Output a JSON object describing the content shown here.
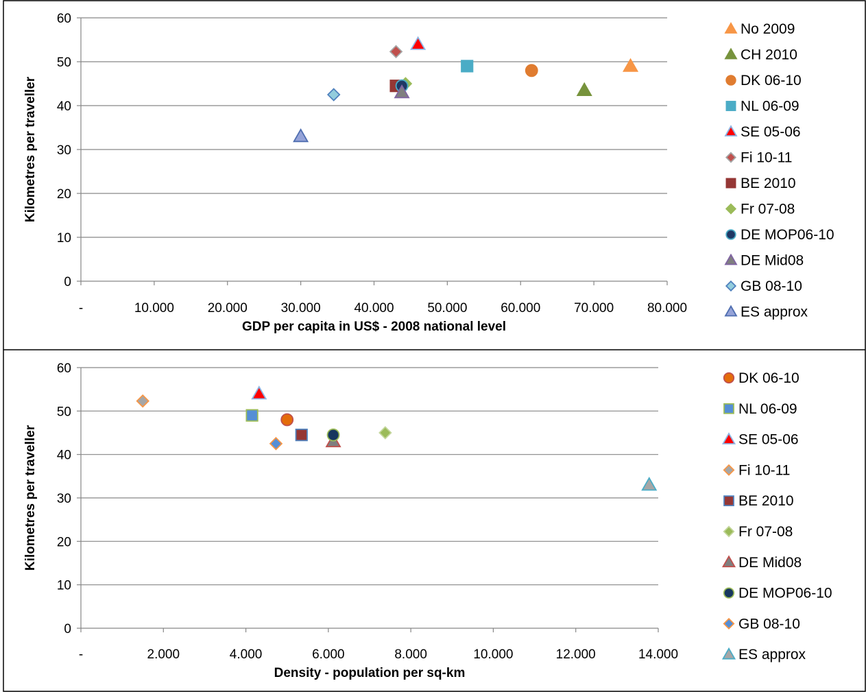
{
  "chart_data": [
    {
      "type": "scatter",
      "xlabel": "GDP per capita in US$ - 2008 national level",
      "ylabel": "Kilometres per traveller",
      "xlim": [
        0,
        80000
      ],
      "ylim": [
        0,
        60
      ],
      "x_tick_labels": [
        "-",
        "10.000",
        "20.000",
        "30.000",
        "40.000",
        "50.000",
        "60.000",
        "70.000",
        "80.000"
      ],
      "y_tick_labels": [
        "0",
        "10",
        "20",
        "30",
        "40",
        "50",
        "60"
      ],
      "grid": "horizontal",
      "legend_position": "right",
      "series": [
        {
          "name": "No 2009",
          "marker": "triangle",
          "fill": "#F79646",
          "stroke": "#F79646",
          "x": 75000,
          "y": 49
        },
        {
          "name": "CH 2010",
          "marker": "triangle",
          "fill": "#77933C",
          "stroke": "#77933C",
          "x": 68700,
          "y": 43.5
        },
        {
          "name": "DK 06-10",
          "marker": "circle",
          "fill": "#E07C30",
          "stroke": "#E07C30",
          "x": 61500,
          "y": 48
        },
        {
          "name": "NL 06-09",
          "marker": "square",
          "fill": "#4BACC6",
          "stroke": "#4BACC6",
          "x": 52700,
          "y": 49
        },
        {
          "name": "SE 05-06",
          "marker": "triangle",
          "fill": "#FF0000",
          "stroke": "#8EB4E3",
          "x": 46000,
          "y": 54
        },
        {
          "name": "Fi 10-11",
          "marker": "diamond",
          "fill": "#C0504D",
          "stroke": "#A6A6A6",
          "x": 43000,
          "y": 52.3
        },
        {
          "name": "BE 2010",
          "marker": "square",
          "fill": "#953735",
          "stroke": "#953735",
          "x": 43000,
          "y": 44.5
        },
        {
          "name": "Fr 07-08",
          "marker": "diamond",
          "fill": "#9BBB59",
          "stroke": "#9BBB59",
          "x": 44300,
          "y": 45
        },
        {
          "name": "DE MOP06-10",
          "marker": "circle",
          "fill": "#1F3864",
          "stroke": "#4BACC6",
          "x": 43800,
          "y": 44.5
        },
        {
          "name": "DE Mid08",
          "marker": "triangle",
          "fill": "#7F7F7F",
          "stroke": "#8064A2",
          "x": 43800,
          "y": 43
        },
        {
          "name": "GB 08-10",
          "marker": "diamond",
          "fill": "#93CDDD",
          "stroke": "#4F81BD",
          "x": 34500,
          "y": 42.5
        },
        {
          "name": "ES approx",
          "marker": "triangle",
          "fill": "#95A3D8",
          "stroke": "#4F6EB0",
          "x": 30000,
          "y": 33
        }
      ]
    },
    {
      "type": "scatter",
      "xlabel": "Density - population per sq-km",
      "ylabel": "Kilometres per traveller",
      "xlim": [
        0,
        14000
      ],
      "ylim": [
        0,
        60
      ],
      "x_tick_labels": [
        "-",
        "2.000",
        "4.000",
        "6.000",
        "8.000",
        "10.000",
        "12.000",
        "14.000"
      ],
      "y_tick_labels": [
        "0",
        "10",
        "20",
        "30",
        "40",
        "50",
        "60"
      ],
      "grid": "horizontal",
      "legend_position": "right",
      "series": [
        {
          "name": "DK 06-10",
          "marker": "circle",
          "fill": "#E46C0A",
          "stroke": "#C0504D",
          "x": 5000,
          "y": 48
        },
        {
          "name": "NL 06-09",
          "marker": "square",
          "fill": "#558ED5",
          "stroke": "#9BBB59",
          "x": 4150,
          "y": 49
        },
        {
          "name": "SE 05-06",
          "marker": "triangle",
          "fill": "#FF0000",
          "stroke": "#8EB4E3",
          "x": 4320,
          "y": 54
        },
        {
          "name": "Fi 10-11",
          "marker": "diamond",
          "fill": "#A6A6A6",
          "stroke": "#F79646",
          "x": 1500,
          "y": 52.3
        },
        {
          "name": "BE 2010",
          "marker": "square",
          "fill": "#953735",
          "stroke": "#4F81BD",
          "x": 5350,
          "y": 44.5
        },
        {
          "name": "Fr 07-08",
          "marker": "diamond",
          "fill": "#9BBB59",
          "stroke": "#C3D69B",
          "x": 7380,
          "y": 45
        },
        {
          "name": "DE Mid08",
          "marker": "triangle",
          "fill": "#7F7F7F",
          "stroke": "#C0504D",
          "x": 6120,
          "y": 43
        },
        {
          "name": "DE MOP06-10",
          "marker": "circle",
          "fill": "#17375E",
          "stroke": "#9BBB59",
          "x": 6120,
          "y": 44.5
        },
        {
          "name": "GB 08-10",
          "marker": "diamond",
          "fill": "#558ED5",
          "stroke": "#F79646",
          "x": 4730,
          "y": 42.5
        },
        {
          "name": "ES approx",
          "marker": "triangle",
          "fill": "#A6A6A6",
          "stroke": "#4BACC6",
          "x": 13780,
          "y": 33
        }
      ]
    }
  ]
}
